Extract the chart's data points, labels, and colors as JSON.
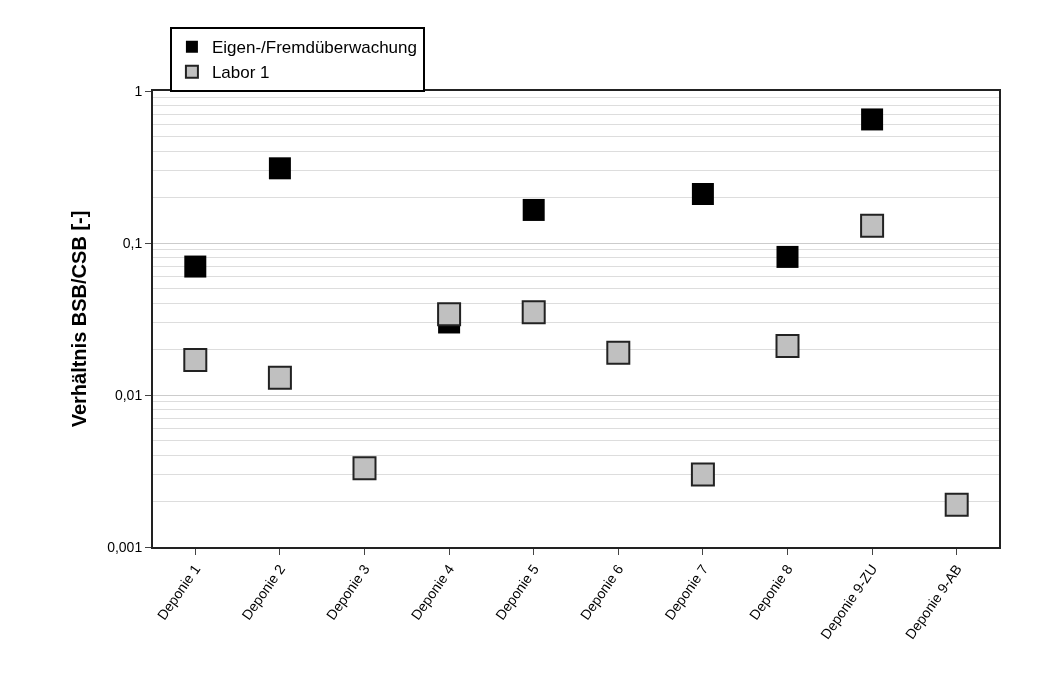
{
  "chart_data": {
    "type": "scatter",
    "ylabel": "Verhältnis BSB/CSB [-]",
    "categories": [
      "Deponie 1",
      "Deponie 2",
      "Deponie 3",
      "Deponie 4",
      "Deponie 5",
      "Deponie 6",
      "Deponie 7",
      "Deponie 8",
      "Deponie 9-ZU",
      "Deponie 9-AB"
    ],
    "series": [
      {
        "name": "Eigen-/Fremdüberwachung",
        "color": "#000000",
        "values": [
          0.07,
          0.31,
          null,
          0.03,
          0.165,
          null,
          0.21,
          0.081,
          0.65,
          null
        ]
      },
      {
        "name": "Labor 1",
        "color": "#c0c0c0",
        "values": [
          0.017,
          0.013,
          0.0033,
          0.034,
          0.035,
          0.019,
          0.003,
          0.021,
          0.13,
          0.0019
        ]
      }
    ],
    "log": "y",
    "ylim": [
      0.001,
      1
    ],
    "yticks": [
      {
        "value": 0.001,
        "label": "0,001"
      },
      {
        "value": 0.01,
        "label": "0,01"
      },
      {
        "value": 0.1,
        "label": "0,1"
      },
      1
    ],
    "grid": "y",
    "legend": "top left",
    "marker": "square"
  }
}
